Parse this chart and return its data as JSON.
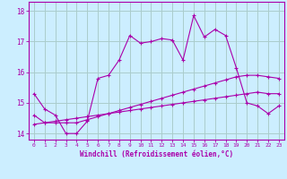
{
  "xlabel": "Windchill (Refroidissement éolien,°C)",
  "background_color": "#cceeff",
  "grid_color": "#aacccc",
  "line_color": "#aa00aa",
  "x_values": [
    0,
    1,
    2,
    3,
    4,
    5,
    6,
    7,
    8,
    9,
    10,
    11,
    12,
    13,
    14,
    15,
    16,
    17,
    18,
    19,
    20,
    21,
    22,
    23
  ],
  "line1": [
    15.3,
    14.8,
    14.6,
    14.0,
    14.0,
    14.4,
    15.8,
    15.9,
    16.4,
    17.2,
    16.95,
    17.0,
    17.1,
    17.05,
    16.4,
    17.85,
    17.15,
    17.4,
    17.2,
    16.15,
    15.0,
    14.9,
    14.65,
    14.9
  ],
  "line2": [
    14.6,
    14.35,
    14.35,
    14.35,
    14.35,
    14.45,
    14.55,
    14.65,
    14.75,
    14.85,
    14.95,
    15.05,
    15.15,
    15.25,
    15.35,
    15.45,
    15.55,
    15.65,
    15.75,
    15.85,
    15.9,
    15.9,
    15.85,
    15.8
  ],
  "line3": [
    14.3,
    14.35,
    14.4,
    14.45,
    14.5,
    14.55,
    14.6,
    14.65,
    14.7,
    14.75,
    14.8,
    14.85,
    14.9,
    14.95,
    15.0,
    15.05,
    15.1,
    15.15,
    15.2,
    15.25,
    15.3,
    15.35,
    15.3,
    15.3
  ],
  "ylim": [
    13.8,
    18.3
  ],
  "xlim": [
    -0.5,
    23.5
  ],
  "yticks": [
    14,
    15,
    16,
    17,
    18
  ],
  "xticks": [
    0,
    1,
    2,
    3,
    4,
    5,
    6,
    7,
    8,
    9,
    10,
    11,
    12,
    13,
    14,
    15,
    16,
    17,
    18,
    19,
    20,
    21,
    22,
    23
  ],
  "xtick_labels": [
    "0",
    "1",
    "2",
    "3",
    "4",
    "5",
    "6",
    "7",
    "8",
    "9",
    "10",
    "11",
    "12",
    "13",
    "14",
    "15",
    "16",
    "17",
    "18",
    "19",
    "20",
    "21",
    "22",
    "23"
  ]
}
